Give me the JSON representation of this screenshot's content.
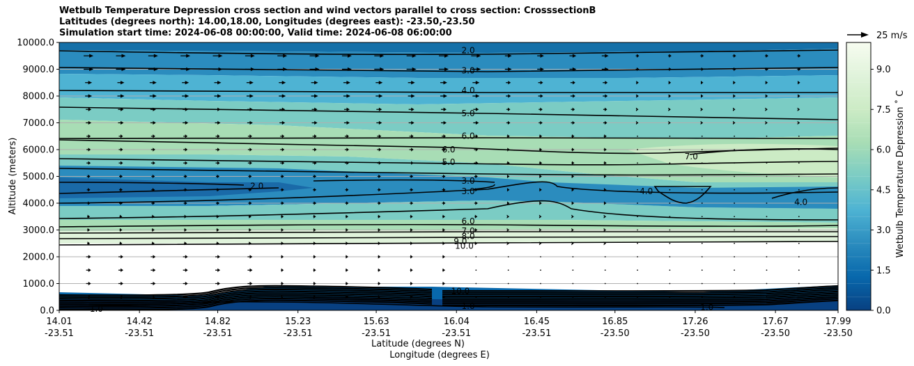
{
  "title": {
    "line1": "Wetbulb Temperature Depression cross section and wind vectors parallel to cross section: CrosssectionB",
    "line2": "Latitudes (degrees north): 14.00,18.00, Longitudes (degrees east): -23.50,-23.50",
    "line3": "Simulation start time: 2024-06-08 00:00:00, Valid time: 2024-06-08 06:00:00"
  },
  "chart_data": {
    "type": "heatmap",
    "ylabel": "Altitude (meters)",
    "xlabel_lat": "Latitude (degrees N)",
    "xlabel_lon": "Longitude (degrees E)",
    "ylim": [
      0,
      10000
    ],
    "y_ticks": [
      "0.0",
      "1000.0",
      "2000.0",
      "3000.0",
      "4000.0",
      "5000.0",
      "6000.0",
      "7000.0",
      "8000.0",
      "9000.0",
      "10000.0"
    ],
    "x_ticks": [
      {
        "lat": "14.01",
        "lon": "-23.51"
      },
      {
        "lat": "14.42",
        "lon": "-23.51"
      },
      {
        "lat": "14.82",
        "lon": "-23.51"
      },
      {
        "lat": "15.23",
        "lon": "-23.51"
      },
      {
        "lat": "15.63",
        "lon": "-23.51"
      },
      {
        "lat": "16.04",
        "lon": "-23.51"
      },
      {
        "lat": "16.45",
        "lon": "-23.51"
      },
      {
        "lat": "16.85",
        "lon": "-23.50"
      },
      {
        "lat": "17.26",
        "lon": "-23.50"
      },
      {
        "lat": "17.67",
        "lon": "-23.50"
      },
      {
        "lat": "17.99",
        "lon": "-23.50"
      }
    ],
    "grid": true,
    "colorbar": {
      "label": "Wetbulb Temperature Depression $^\\circ$C",
      "label_display": "Wetbulb Temperature Depression ˚ C",
      "range": [
        0,
        10
      ],
      "ticks": [
        "0.0",
        "1.5",
        "3.0",
        "4.5",
        "6.0",
        "7.5",
        "9.0"
      ],
      "colormap": "GnBu_r",
      "colors": [
        "#084081",
        "#0868ac",
        "#2b8cbe",
        "#4eb3d3",
        "#7bccc4",
        "#a8ddb5",
        "#ccebc5",
        "#e0f3db",
        "#f7fcf0"
      ]
    },
    "quiver_key": "25 m/s",
    "contour_lines": [
      {
        "value": 2.0,
        "altitude_m": 9700
      },
      {
        "value": 3.0,
        "altitude_m": 9050
      },
      {
        "value": 4.0,
        "altitude_m": 8250
      },
      {
        "value": 5.0,
        "altitude_m": 7500
      },
      {
        "value": 6.0,
        "altitude_m": 6400
      },
      {
        "value": 6.0,
        "altitude_m": 6000
      },
      {
        "value": 5.0,
        "altitude_m": 5550
      },
      {
        "value": 3.0,
        "altitude_m": 4850
      },
      {
        "value": 3.0,
        "altitude_m": 4450
      },
      {
        "value": 6.0,
        "altitude_m": 3350
      },
      {
        "value": 7.0,
        "altitude_m": 3000
      },
      {
        "value": 8.0,
        "altitude_m": 2800
      },
      {
        "value": 9.0,
        "altitude_m": 2600
      },
      {
        "value": 10.0,
        "altitude_m": 2400
      },
      {
        "value": 1.0,
        "altitude_m": 250
      }
    ],
    "contour_labels": [
      {
        "text": "2.0",
        "x": 16.1,
        "y": 9720
      },
      {
        "text": "3.0",
        "x": 16.1,
        "y": 8960
      },
      {
        "text": "4.0",
        "x": 16.1,
        "y": 8220
      },
      {
        "text": "5.0",
        "x": 16.1,
        "y": 7370
      },
      {
        "text": "6.0",
        "x": 16.1,
        "y": 6520
      },
      {
        "text": "6.0",
        "x": 16.0,
        "y": 6010
      },
      {
        "text": "5.0",
        "x": 16.0,
        "y": 5550
      },
      {
        "text": "3.0",
        "x": 16.1,
        "y": 4850
      },
      {
        "text": "3.0",
        "x": 16.1,
        "y": 4450
      },
      {
        "text": "2.0",
        "x": 15.02,
        "y": 4650
      },
      {
        "text": "7.0",
        "x": 17.24,
        "y": 5750
      },
      {
        "text": "4.0",
        "x": 17.01,
        "y": 4450
      },
      {
        "text": "4.0",
        "x": 17.8,
        "y": 4050
      },
      {
        "text": "6.0",
        "x": 16.1,
        "y": 3340
      },
      {
        "text": "7.0",
        "x": 16.1,
        "y": 2980
      },
      {
        "text": "8.0",
        "x": 16.1,
        "y": 2780
      },
      {
        "text": "9.0",
        "x": 16.06,
        "y": 2590
      },
      {
        "text": "10.0",
        "x": 16.08,
        "y": 2420
      },
      {
        "text": "10.0",
        "x": 16.06,
        "y": 730
      },
      {
        "text": "1.0",
        "x": 16.1,
        "y": 170
      },
      {
        "text": "1.0",
        "x": 14.2,
        "y": 60
      },
      {
        "text": "1.0",
        "x": 17.32,
        "y": 130
      }
    ]
  }
}
